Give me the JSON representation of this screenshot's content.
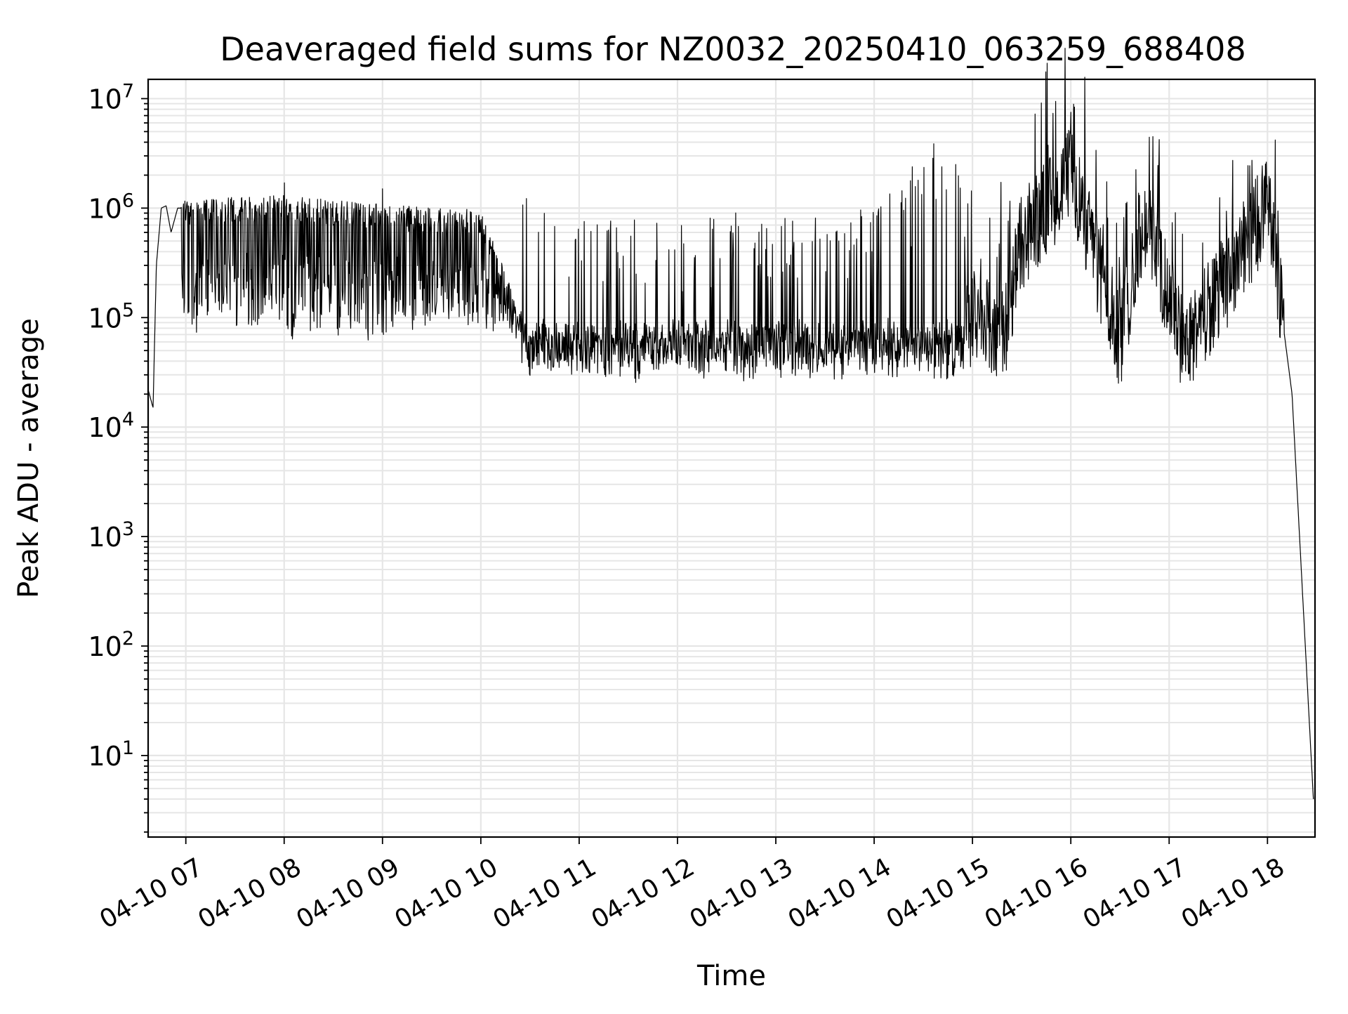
{
  "chart_data": {
    "type": "line",
    "title": "Deaveraged field sums for NZ0032_20250410_063259_688408",
    "xlabel": "Time",
    "ylabel": "Peak ADU - average",
    "yscale": "log",
    "ylim": [
      1.8,
      15000000
    ],
    "xlim": [
      "2025-04-10 06:37",
      "2025-04-10 18:29"
    ],
    "x_ticks": [
      {
        "value": "2025-04-10 07:00",
        "label": "04-10 07"
      },
      {
        "value": "2025-04-10 08:00",
        "label": "04-10 08"
      },
      {
        "value": "2025-04-10 09:00",
        "label": "04-10 09"
      },
      {
        "value": "2025-04-10 10:00",
        "label": "04-10 10"
      },
      {
        "value": "2025-04-10 11:00",
        "label": "04-10 11"
      },
      {
        "value": "2025-04-10 12:00",
        "label": "04-10 12"
      },
      {
        "value": "2025-04-10 13:00",
        "label": "04-10 13"
      },
      {
        "value": "2025-04-10 14:00",
        "label": "04-10 14"
      },
      {
        "value": "2025-04-10 15:00",
        "label": "04-10 15"
      },
      {
        "value": "2025-04-10 16:00",
        "label": "04-10 16"
      },
      {
        "value": "2025-04-10 17:00",
        "label": "04-10 17"
      },
      {
        "value": "2025-04-10 18:00",
        "label": "04-10 18"
      }
    ],
    "y_ticks": [
      {
        "value": 10,
        "base": "10",
        "exp": "1"
      },
      {
        "value": 100,
        "base": "10",
        "exp": "2"
      },
      {
        "value": 1000,
        "base": "10",
        "exp": "3"
      },
      {
        "value": 10000,
        "base": "10",
        "exp": "4"
      },
      {
        "value": 100000,
        "base": "10",
        "exp": "5"
      },
      {
        "value": 1000000,
        "base": "10",
        "exp": "6"
      },
      {
        "value": 10000000,
        "base": "10",
        "exp": "7"
      }
    ],
    "grid": true,
    "line_color": "#000000",
    "grid_color": "#e6e6e6",
    "series": [
      {
        "values_sampled": [
          {
            "x": "2025-04-10 06:37",
            "y": 22000
          },
          {
            "x": "2025-04-10 06:40",
            "y": 15000
          },
          {
            "x": "2025-04-10 06:42",
            "y": 300000
          },
          {
            "x": "2025-04-10 06:45",
            "y": 1000000
          },
          {
            "x": "2025-04-10 06:48",
            "y": 1050000
          },
          {
            "x": "2025-04-10 06:51",
            "y": 600000
          },
          {
            "x": "2025-04-10 06:55",
            "y": 1000000
          },
          {
            "x": "2025-04-10 07:00",
            "y": 1000000
          },
          {
            "x": "2025-04-10 08:00",
            "y": 1100000
          },
          {
            "x": "2025-04-10 09:00",
            "y": 900000
          },
          {
            "x": "2025-04-10 10:00",
            "y": 800000
          },
          {
            "x": "2025-04-10 10:30",
            "y": 60000
          },
          {
            "x": "2025-04-10 11:00",
            "y": 45000
          },
          {
            "x": "2025-04-10 12:00",
            "y": 40000
          },
          {
            "x": "2025-04-10 13:00",
            "y": 45000
          },
          {
            "x": "2025-04-10 14:00",
            "y": 55000
          },
          {
            "x": "2025-04-10 14:40",
            "y": 250000
          },
          {
            "x": "2025-04-10 15:00",
            "y": 90000
          },
          {
            "x": "2025-04-10 15:20",
            "y": 75000
          },
          {
            "x": "2025-04-10 15:30",
            "y": 500000
          },
          {
            "x": "2025-04-10 16:00",
            "y": 2000000
          },
          {
            "x": "2025-04-10 16:30",
            "y": 60000
          },
          {
            "x": "2025-04-10 16:45",
            "y": 800000
          },
          {
            "x": "2025-04-10 17:10",
            "y": 50000
          },
          {
            "x": "2025-04-10 17:40",
            "y": 300000
          },
          {
            "x": "2025-04-10 18:00",
            "y": 1100000
          },
          {
            "x": "2025-04-10 18:15",
            "y": 20000
          },
          {
            "x": "2025-04-10 18:28",
            "y": 4
          }
        ],
        "peaks": [
          {
            "x": "2025-04-10 08:00",
            "y": 1700000
          },
          {
            "x": "2025-04-10 09:00",
            "y": 1500000
          },
          {
            "x": "2025-04-10 16:00",
            "y": 7500000
          },
          {
            "x": "2025-04-10 16:50",
            "y": 4500000
          }
        ]
      }
    ]
  }
}
